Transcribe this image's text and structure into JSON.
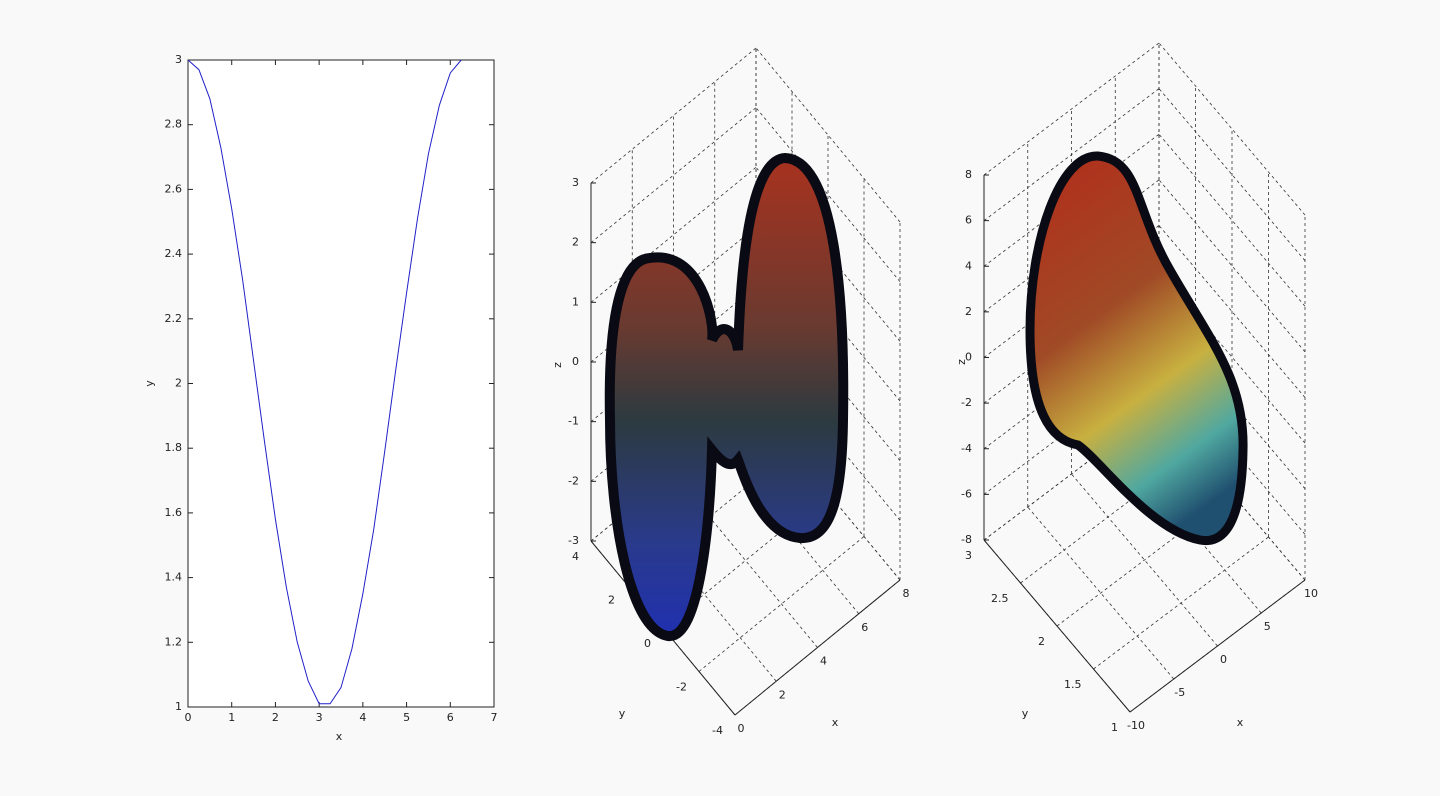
{
  "chart_data": [
    {
      "type": "line",
      "xlabel": "x",
      "ylabel": "y",
      "color": "#2020c8",
      "x": [
        0,
        0.25,
        0.5,
        0.75,
        1,
        1.25,
        1.5,
        1.75,
        2,
        2.25,
        2.5,
        2.75,
        3,
        3.25,
        3.5,
        3.75,
        4,
        4.25,
        4.5,
        4.75,
        5,
        5.25,
        5.5,
        5.75,
        6,
        6.25
      ],
      "values": [
        3,
        2.97,
        2.88,
        2.73,
        2.54,
        2.32,
        2.07,
        1.82,
        1.58,
        1.37,
        1.2,
        1.08,
        1.01,
        1.01,
        1.06,
        1.18,
        1.35,
        1.55,
        1.79,
        2.04,
        2.28,
        2.51,
        2.71,
        2.86,
        2.96,
        3
      ],
      "xlim": [
        0,
        7
      ],
      "ylim": [
        1,
        3
      ],
      "xticks": [
        0,
        1,
        2,
        3,
        4,
        5,
        6,
        7
      ],
      "yticks": [
        1,
        1.2,
        1.4,
        1.6,
        1.8,
        2,
        2.2,
        2.4,
        2.6,
        2.8,
        3
      ]
    },
    {
      "type": "surface3d",
      "xlabel": "x",
      "ylabel": "y",
      "zlabel": "z",
      "grid": true,
      "xlim": [
        0,
        8
      ],
      "ylim": [
        -4,
        4
      ],
      "zlim": [
        -3,
        3
      ],
      "xticks": [
        0,
        2,
        4,
        6,
        8
      ],
      "yticks": [
        -4,
        -2,
        0,
        2,
        4
      ],
      "zticks": [
        -3,
        -2,
        -1,
        0,
        1,
        2,
        3
      ]
    },
    {
      "type": "surface3d",
      "xlabel": "x",
      "ylabel": "y",
      "zlabel": "z",
      "grid": true,
      "xlim": [
        -10,
        10
      ],
      "ylim": [
        1,
        3
      ],
      "zlim": [
        -8,
        8
      ],
      "xticks": [
        -10,
        -5,
        0,
        5,
        10
      ],
      "yticks": [
        1,
        1.5,
        2,
        2.5,
        3
      ],
      "zticks": [
        -8,
        -6,
        -4,
        -2,
        0,
        2,
        4,
        6,
        8
      ]
    }
  ]
}
